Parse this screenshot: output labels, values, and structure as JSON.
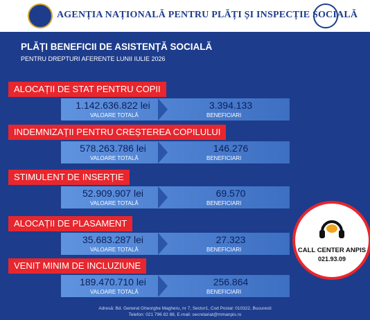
{
  "header": {
    "agency": "AGENȚIA NAȚIONALĂ PENTRU PLĂȚI ȘI INSPECȚIE SOCIALĂ"
  },
  "title": "PLĂȚI BENEFICII DE ASISTENȚĂ SOCIALĂ",
  "subtitle": "PENTRU DREPTURI AFERENTE LUNII IULIE 2026",
  "sections": [
    {
      "title": "ALOCAȚII DE STAT PENTRU COPII",
      "amount": "1.142.636.822 lei",
      "amount_label": "VALOARE TOTALĂ",
      "beneficiaries": "3.394.133",
      "beneficiaries_label": "BENEFICIARI"
    },
    {
      "title": "INDEMNIZAȚII PENTRU CREȘTEREA COPILULUI",
      "amount": "578.263.786 lei",
      "amount_label": "VALOARE TOTALĂ",
      "beneficiaries": "146.276",
      "beneficiaries_label": "BENEFICIARI"
    },
    {
      "title": "STIMULENT DE INSERȚIE",
      "amount": "52.909.907 lei",
      "amount_label": "VALOARE TOTALĂ",
      "beneficiaries": "69.570",
      "beneficiaries_label": "BENEFICIARI"
    },
    {
      "title": "ALOCAȚII DE PLASAMENT",
      "amount": "35.683.287 lei",
      "amount_label": "VALOARE TOTALĂ",
      "beneficiaries": "27.323",
      "beneficiaries_label": "BENEFICIARI"
    },
    {
      "title": "VENIT MINIM DE INCLUZIUNE",
      "amount": "189.470.710 lei",
      "amount_label": "VALOARE TOTALĂ",
      "beneficiaries": "256.864",
      "beneficiaries_label": "BENEFICIARI"
    }
  ],
  "call_center": {
    "title": "CALL CENTER ANPIS",
    "phone": "021.93.09"
  },
  "footer": {
    "address": "Adresă: Bd. General Gheorghe Magheru, nr 7, Sector1, Cod Postal: 010322, Bucuresti",
    "contact": "Telefon: 021 796 82 88, E-mail: secretariat@mmanpis.ro"
  }
}
